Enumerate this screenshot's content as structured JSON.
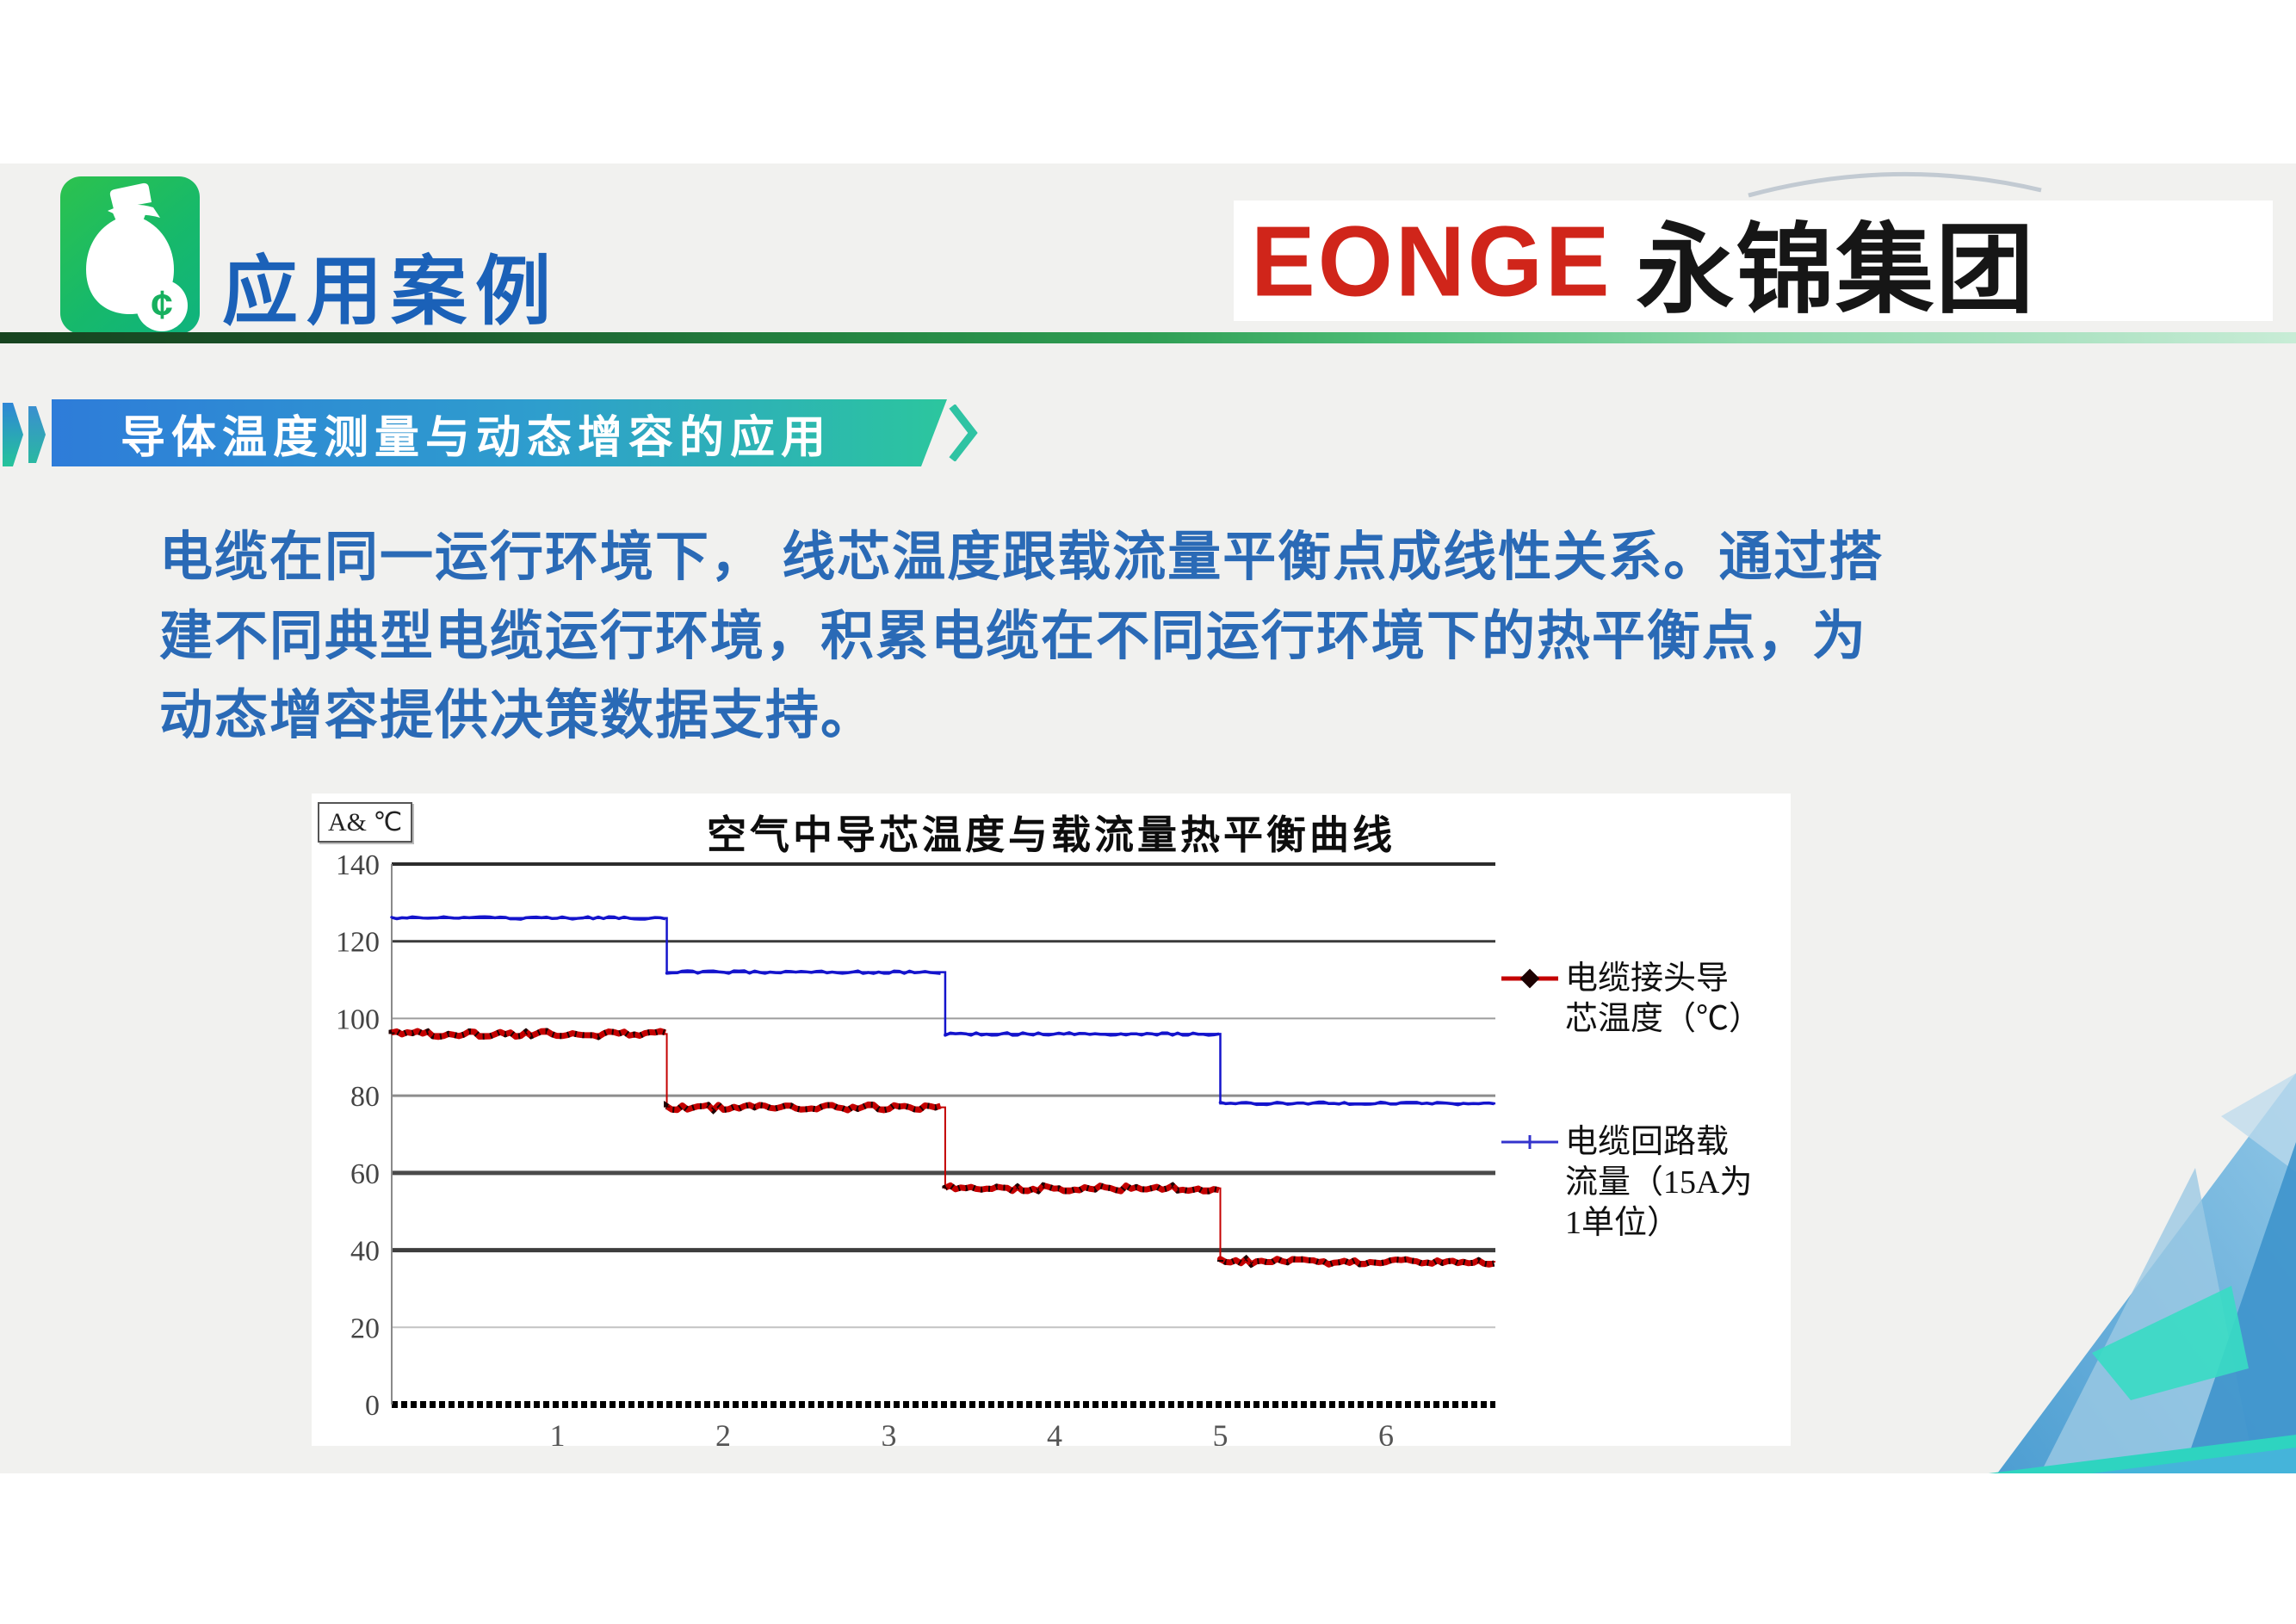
{
  "slide": {
    "header": {
      "title": "应用案例"
    },
    "logo": {
      "latin": "EONGE",
      "cjk": "永锦集团"
    },
    "banner": {
      "text": "导体温度测量与动态增容的应用"
    },
    "paragraph": {
      "lines": [
        "电缆在同一运行环境下， 线芯温度跟载流量平衡点成线性关系。通过搭",
        "建不同典型电缆运行环境，积累电缆在不同运行环境下的热平衡点，为",
        "动态增容提供决策数据支持。"
      ]
    },
    "colors": {
      "title_blue": "#1b61b8",
      "body_blue": "#2a6ab6",
      "banner_gradient_start": "#2e7cd9",
      "banner_gradient_end": "#2cc69e",
      "divider_dark_green": "#17431f",
      "divider_light_green": "#b2e4c6",
      "logo_red": "#d0251a",
      "icon_green": "#1db46a",
      "slide_gray": "#f1f1ef"
    }
  },
  "chart_data": {
    "type": "line",
    "title": "空气中导芯温度与载流量热平衡曲线",
    "unit_box": "A& ℃",
    "xlabel": "",
    "ylabel": "",
    "x_ticks": [
      1,
      2,
      3,
      4,
      5,
      6
    ],
    "y_ticks": [
      0,
      20,
      40,
      60,
      80,
      100,
      120,
      140
    ],
    "x_range": [
      0,
      6.66
    ],
    "y_range": [
      0,
      140
    ],
    "grid": true,
    "legend_position": "right",
    "series": [
      {
        "name": "电缆接头导芯温度（℃）",
        "name_lines": [
          "电缆接头导",
          "芯温度（℃）"
        ],
        "color": "#c40000",
        "marker": "diamond",
        "step_x": [
          0,
          1.66,
          3.34,
          5.0
        ],
        "levels": [
          96,
          77,
          56,
          37
        ],
        "x_end": 6.66
      },
      {
        "name": "电缆回路载流量（15A为1单位）",
        "name_lines": [
          "电缆回路载",
          "流量（15A为",
          "1单位）"
        ],
        "color": "#1414cc",
        "marker": "tick",
        "step_x": [
          0,
          1.66,
          3.34,
          5.0
        ],
        "levels": [
          126,
          112,
          96,
          78
        ],
        "x_end": 6.66
      }
    ]
  }
}
